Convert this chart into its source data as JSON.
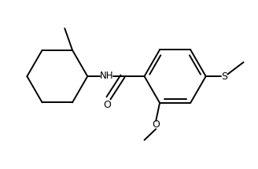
{
  "bg_color": "#ffffff",
  "line_color": "#000000",
  "line_width": 1.4,
  "font_size": 8.5,
  "figsize": [
    3.28,
    2.15
  ],
  "dpi": 100,
  "xlim": [
    0,
    10
  ],
  "ylim": [
    0,
    6.56
  ]
}
